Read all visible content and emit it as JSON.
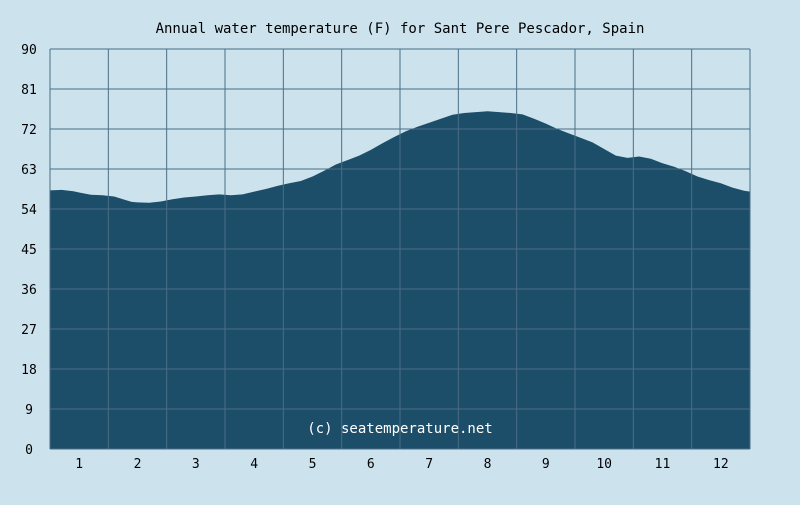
{
  "chart_data": {
    "type": "area",
    "title": "Annual water temperature (F) for Sant Pere Pescador, Spain",
    "xlabel": "",
    "ylabel": "",
    "x_ticks": [
      "1",
      "2",
      "3",
      "4",
      "5",
      "6",
      "7",
      "8",
      "9",
      "10",
      "11",
      "12"
    ],
    "y_ticks": [
      "0",
      "9",
      "18",
      "27",
      "36",
      "45",
      "54",
      "63",
      "72",
      "81",
      "90"
    ],
    "xlim": [
      0.5,
      12.5
    ],
    "ylim": [
      0,
      90
    ],
    "grid": true,
    "series": [
      {
        "x": [
          0.5,
          0.7,
          0.9,
          1.0,
          1.2,
          1.4,
          1.6,
          1.8,
          1.9,
          2.0,
          2.2,
          2.4,
          2.6,
          2.8,
          3.0,
          3.2,
          3.4,
          3.6,
          3.8,
          4.0,
          4.2,
          4.4,
          4.6,
          4.8,
          5.0,
          5.2,
          5.4,
          5.6,
          5.8,
          6.0,
          6.2,
          6.4,
          6.6,
          6.8,
          7.0,
          7.2,
          7.4,
          7.6,
          7.8,
          8.0,
          8.2,
          8.4,
          8.6,
          8.8,
          9.0,
          9.2,
          9.4,
          9.6,
          9.8,
          10.0,
          10.2,
          10.4,
          10.6,
          10.8,
          11.0,
          11.2,
          11.4,
          11.6,
          11.8,
          12.0,
          12.2,
          12.4,
          12.5
        ],
        "values": [
          58.2,
          58.3,
          58.0,
          57.7,
          57.2,
          57.1,
          56.8,
          56.0,
          55.6,
          55.5,
          55.4,
          55.7,
          56.2,
          56.6,
          56.8,
          57.1,
          57.3,
          57.1,
          57.3,
          57.9,
          58.5,
          59.2,
          59.8,
          60.3,
          61.3,
          62.6,
          64.0,
          65.0,
          66.0,
          67.3,
          68.8,
          70.2,
          71.5,
          72.5,
          73.4,
          74.3,
          75.2,
          75.6,
          75.8,
          76.0,
          75.8,
          75.6,
          75.3,
          74.3,
          73.2,
          72.0,
          71.0,
          70.0,
          69.0,
          67.5,
          66.0,
          65.5,
          65.8,
          65.3,
          64.3,
          63.5,
          62.5,
          61.3,
          60.5,
          59.8,
          58.8,
          58.1,
          57.9
        ]
      }
    ],
    "annotation": "(c) seatemperature.net",
    "colors": {
      "background": "#cce3ee",
      "fill": "#1d4e69",
      "grid": "#4a6e86",
      "text": "#000000",
      "watermark": "#ffffff"
    }
  }
}
